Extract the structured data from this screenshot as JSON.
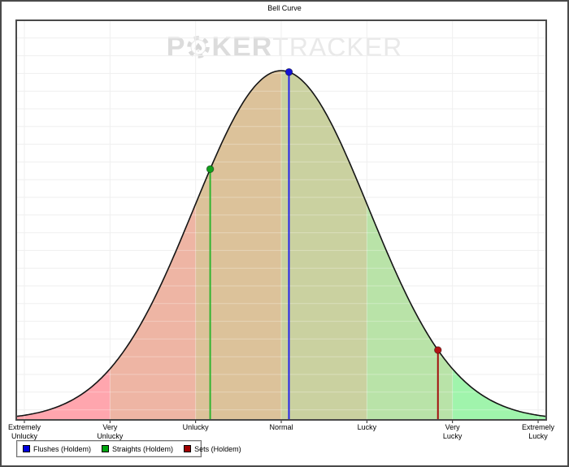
{
  "chart_data": {
    "type": "area",
    "title": "Bell Curve",
    "categories": [
      "Extremely\nUnlucky",
      "Very\nUnlucky",
      "Unlucky",
      "Normal",
      "Lucky",
      "Very\nLucky",
      "Extremely\nLucky"
    ],
    "x_range": [
      0,
      6
    ],
    "grid": true,
    "bell": {
      "center": 3,
      "sigma": 1.02,
      "note": "normal luck distribution peaking at Normal"
    },
    "band_colors": [
      "#ffa6ae",
      "#eeb5a4",
      "#dcc29a",
      "#cad1a0",
      "#b9e3a8",
      "#a0f4ac"
    ],
    "curve_color": "#151515",
    "markers": [
      {
        "name": "Flushes (Holdem)",
        "x": 3.09,
        "dot_color": "#1212d6",
        "line_color": "#2323e8"
      },
      {
        "name": "Straights (Holdem)",
        "x": 2.17,
        "dot_color": "#12a01c",
        "line_color": "#2fb42f"
      },
      {
        "name": "Sets (Holdem)",
        "x": 4.83,
        "dot_color": "#b31515",
        "line_color": "#a31010"
      }
    ]
  },
  "legend": {
    "items": [
      {
        "label": "Flushes (Holdem)",
        "color": "#0000dd"
      },
      {
        "label": "Straights (Holdem)",
        "color": "#00a510"
      },
      {
        "label": "Sets (Holdem)",
        "color": "#a00000"
      }
    ]
  },
  "watermark": {
    "p": "P",
    "ker": "KER",
    "tracker": "TRACKER"
  }
}
